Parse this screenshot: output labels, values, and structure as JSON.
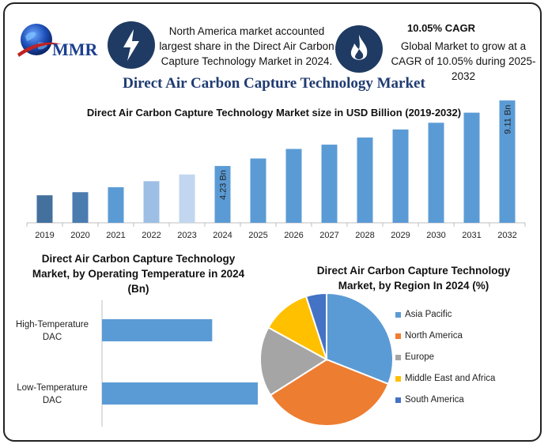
{
  "logo": {
    "text": "MMR"
  },
  "info": {
    "north_america": "North America market accounted largest share in the Direct Air Carbon Capture Technology Market in 2024.",
    "cagr_title": "10.05% CAGR",
    "cagr_text": "Global Market to grow at a CAGR of 10.05% during 2025-2032"
  },
  "title": "Direct Air Carbon Capture Technology Market",
  "chart_data": [
    {
      "type": "bar",
      "title": "Direct Air Carbon Capture Technology Market size in USD Billion (2019-2032)",
      "categories": [
        "2019",
        "2020",
        "2021",
        "2022",
        "2023",
        "2024",
        "2025",
        "2026",
        "2027",
        "2028",
        "2029",
        "2030",
        "2031",
        "2032"
      ],
      "values": [
        2.05,
        2.28,
        2.65,
        3.1,
        3.6,
        4.23,
        4.79,
        5.5,
        5.82,
        6.35,
        6.95,
        7.45,
        8.2,
        9.11
      ],
      "data_labels": {
        "5": "4.23 Bn",
        "13": "9.11 Bn"
      },
      "colors": [
        "#44709e",
        "#4a7cb0",
        "#5b9bd5",
        "#9dbfe5",
        "#c2d7ef",
        "#5b9bd5",
        "#5b9bd5",
        "#5b9bd5",
        "#5b9bd5",
        "#5b9bd5",
        "#5b9bd5",
        "#5b9bd5",
        "#5b9bd5",
        "#5b9bd5"
      ],
      "xlabel": "",
      "ylabel": "",
      "ylim": [
        0,
        10
      ],
      "grid": false
    },
    {
      "type": "bar",
      "orientation": "horizontal",
      "title": "Direct Air Carbon Capture Technology Market, by Operating Temperature in 2024 (Bn)",
      "categories": [
        "High-Temperature DAC",
        "Low-Temperature DAC"
      ],
      "values": [
        1.45,
        2.05
      ],
      "color": "#5b9bd5",
      "xlim": [
        0,
        3.2
      ]
    },
    {
      "type": "pie",
      "title": "Direct Air Carbon Capture Technology Market, by Region In 2024 (%)",
      "labels": [
        "Asia Pacific",
        "North America",
        "Europe",
        "Middle East and Africa",
        "South America"
      ],
      "values": [
        31,
        35,
        17,
        12,
        5
      ],
      "colors": [
        "#5b9bd5",
        "#ed7d31",
        "#a5a5a5",
        "#ffc000",
        "#4472c4"
      ],
      "legend": "right"
    }
  ]
}
